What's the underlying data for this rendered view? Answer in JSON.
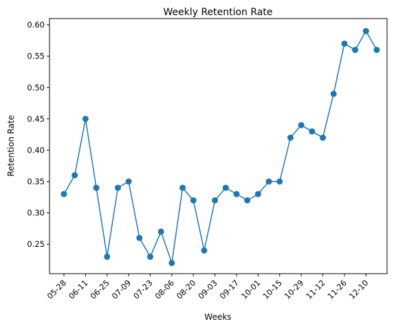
{
  "chart_data": {
    "type": "line",
    "title": "Weekly Retention Rate",
    "xlabel": "Weeks",
    "ylabel": "Retention Rate",
    "series_color": "#1f77b4",
    "grid": false,
    "legend": "none",
    "x_tick_labels": [
      "05-28",
      "06-11",
      "06-25",
      "07-09",
      "07-23",
      "08-06",
      "08-20",
      "09-03",
      "09-17",
      "10-01",
      "10-15",
      "10-29",
      "11-12",
      "11-26",
      "12-10"
    ],
    "y_ticks": [
      "0.25",
      "0.30",
      "0.35",
      "0.40",
      "0.45",
      "0.50",
      "0.55",
      "0.60"
    ],
    "ylim": [
      0.203,
      0.61
    ],
    "series": [
      {
        "values": [
          0.33,
          0.36,
          0.45,
          0.34,
          0.23,
          0.34,
          0.35,
          0.26,
          0.23,
          0.27,
          0.22,
          0.34,
          0.32,
          0.24,
          0.32,
          0.34,
          0.33,
          0.32,
          0.33,
          0.35,
          0.35,
          0.42,
          0.44,
          0.43,
          0.42,
          0.49,
          0.57,
          0.56,
          0.59,
          0.56
        ]
      }
    ]
  }
}
